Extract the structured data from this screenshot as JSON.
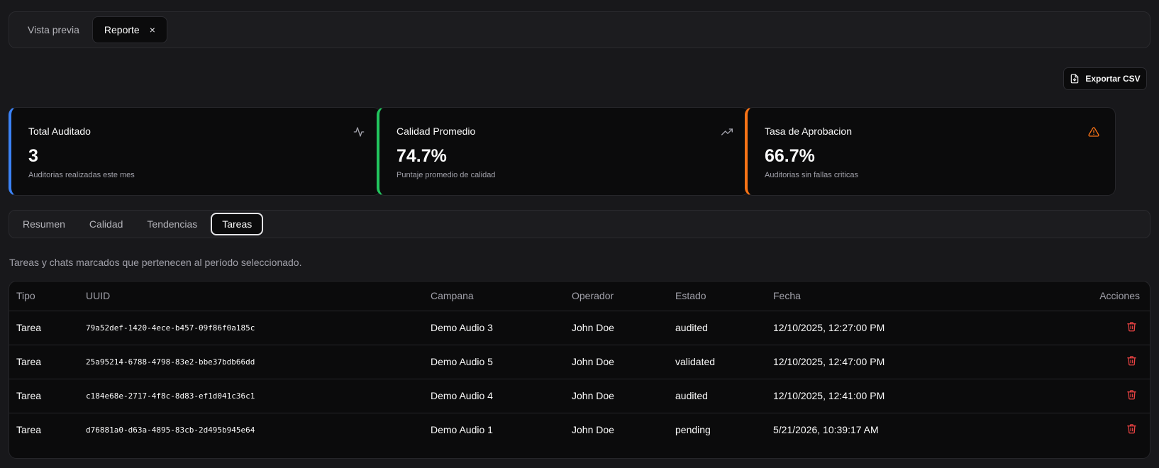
{
  "topbar": {
    "tabs": [
      {
        "label": "Vista previa"
      },
      {
        "label": "Reporte",
        "close": "×"
      }
    ]
  },
  "toolbar": {
    "export_label": "Exportar CSV",
    "export_icon": "file-download-icon"
  },
  "cards": [
    {
      "title": "Total Auditado",
      "value": "3",
      "subtitle": "Auditorias realizadas este mes",
      "accent": "#3b82f6",
      "icon": "activity-icon"
    },
    {
      "title": "Calidad Promedio",
      "value": "74.7%",
      "subtitle": "Puntaje promedio de calidad",
      "accent": "#22c55e",
      "icon": "trending-up-icon"
    },
    {
      "title": "Tasa de Aprobacion",
      "value": "66.7%",
      "subtitle": "Auditorias sin fallas criticas",
      "accent": "#f97316",
      "icon": "warning-triangle-icon",
      "icon_color": "#f97316"
    }
  ],
  "tabs": [
    {
      "label": "Resumen"
    },
    {
      "label": "Calidad"
    },
    {
      "label": "Tendencias"
    },
    {
      "label": "Tareas",
      "active": true
    }
  ],
  "description": "Tareas y chats marcados que pertenecen al período seleccionado.",
  "table": {
    "columns": [
      "Tipo",
      "UUID",
      "Campana",
      "Operador",
      "Estado",
      "Fecha",
      "Acciones"
    ],
    "rows": [
      {
        "tipo": "Tarea",
        "uuid": "79a52def-1420-4ece-b457-09f86f0a185c",
        "campana": "Demo Audio 3",
        "operador": "John Doe",
        "estado": "audited",
        "fecha": "12/10/2025, 12:27:00 PM"
      },
      {
        "tipo": "Tarea",
        "uuid": "25a95214-6788-4798-83e2-bbe37bdb66dd",
        "campana": "Demo Audio 5",
        "operador": "John Doe",
        "estado": "validated",
        "fecha": "12/10/2025, 12:47:00 PM"
      },
      {
        "tipo": "Tarea",
        "uuid": "c184e68e-2717-4f8c-8d83-ef1d041c36c1",
        "campana": "Demo Audio 4",
        "operador": "John Doe",
        "estado": "audited",
        "fecha": "12/10/2025, 12:41:00 PM"
      },
      {
        "tipo": "Tarea",
        "uuid": "d76881a0-d63a-4895-83cb-2d495b945e64",
        "campana": "Demo Audio 1",
        "operador": "John Doe",
        "estado": "pending",
        "fecha": "5/21/2026, 10:39:17 AM"
      }
    ],
    "delete_icon": "trash-icon",
    "delete_color": "#ef4444"
  }
}
